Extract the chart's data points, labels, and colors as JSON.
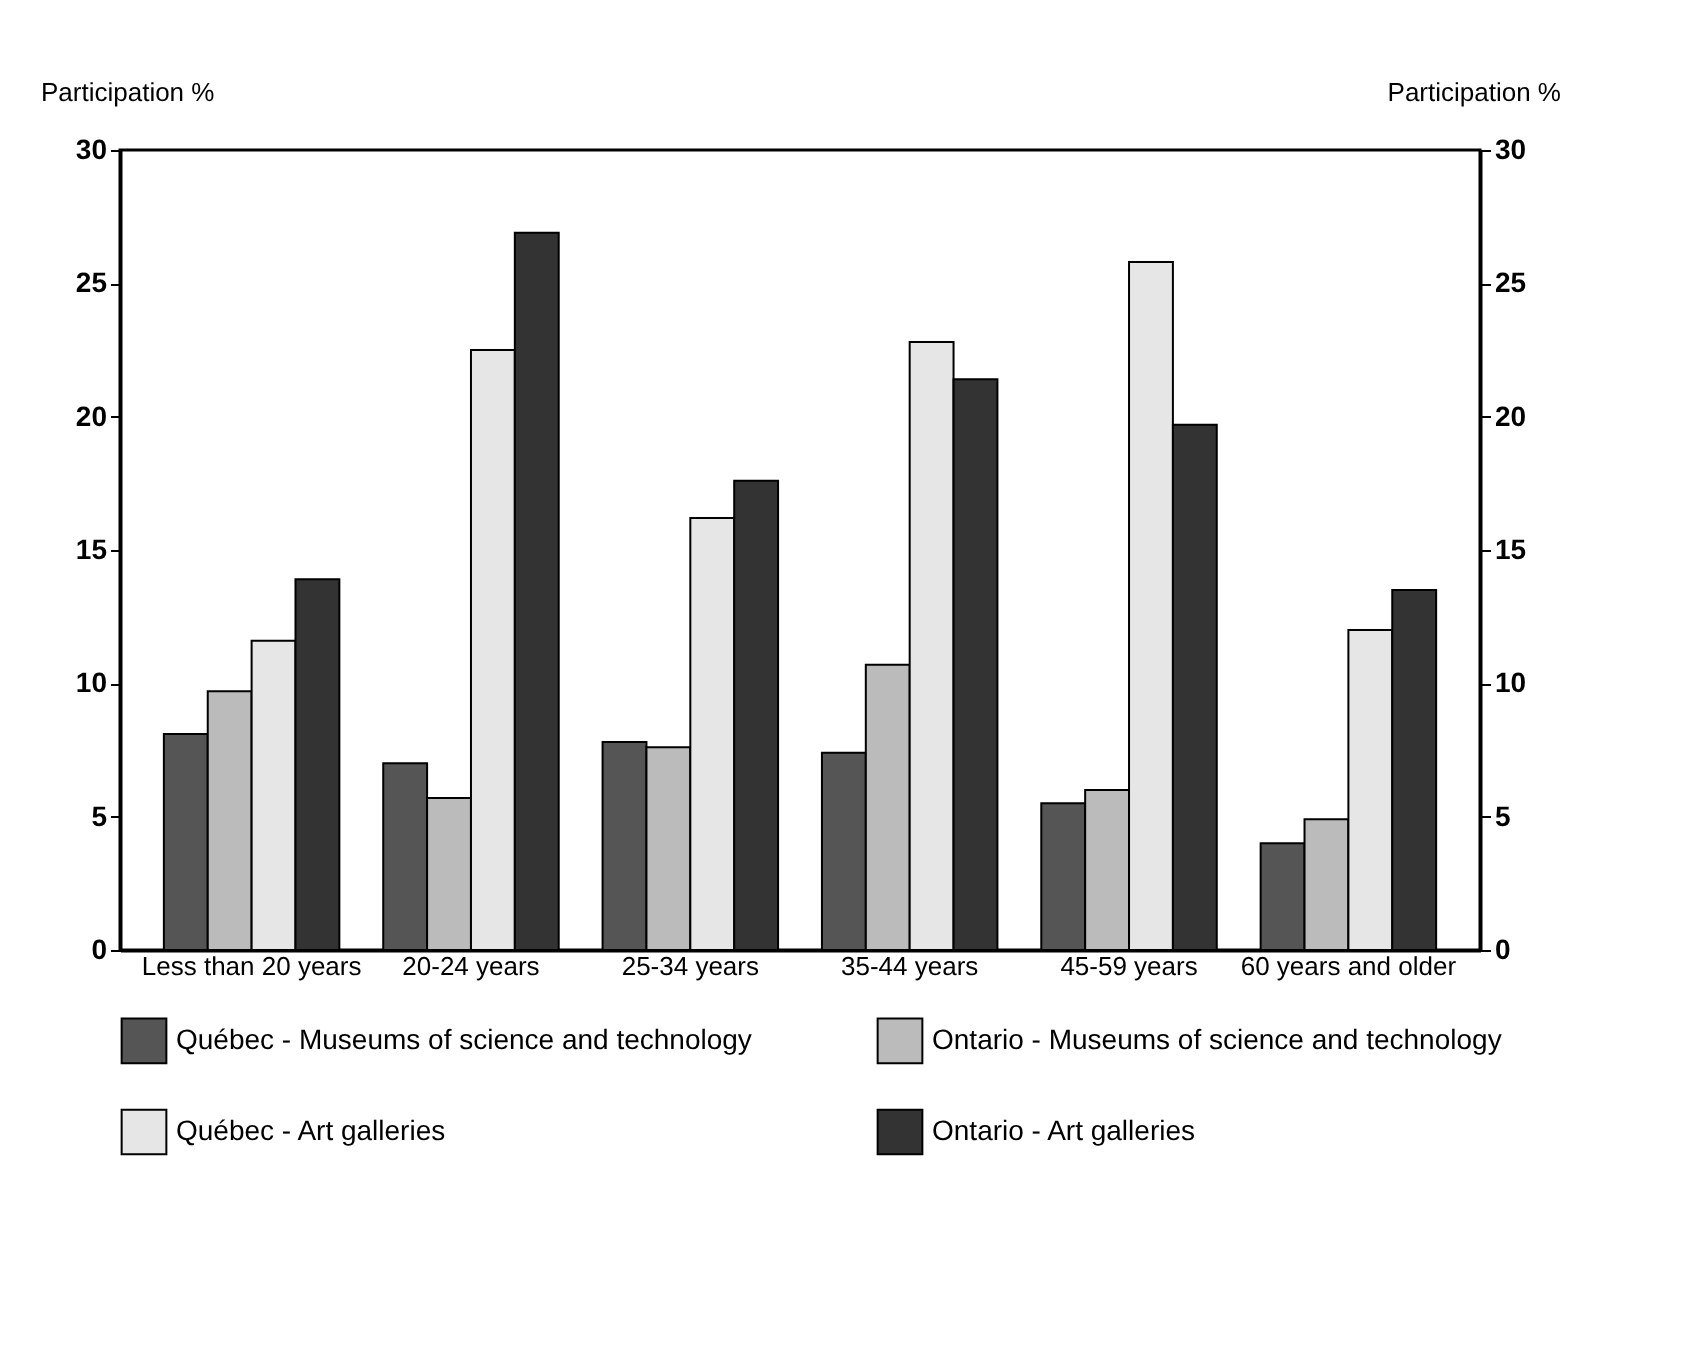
{
  "chart_data": {
    "type": "bar",
    "ylabel": "Participation %",
    "y2label": "Participation %",
    "categories": [
      "Less than 20 years",
      "20-24 years",
      "25-34 years",
      "35-44 years",
      "45-59 years",
      "60 years and older"
    ],
    "series": [
      {
        "name": "Québec - Museums of science and technology",
        "color": "#555555",
        "values": [
          8.1,
          7.0,
          7.8,
          7.4,
          5.5,
          4.0
        ]
      },
      {
        "name": "Ontario - Museums of science and technology",
        "color": "#bbbbbb",
        "values": [
          9.7,
          5.7,
          7.6,
          10.7,
          6.0,
          4.9
        ]
      },
      {
        "name": "Québec - Art galleries",
        "color": "#e6e6e6",
        "values": [
          11.6,
          22.5,
          16.2,
          22.8,
          25.8,
          12.0
        ]
      },
      {
        "name": "Ontario - Art galleries",
        "color": "#333333",
        "values": [
          13.9,
          26.9,
          17.6,
          21.4,
          19.7,
          13.5
        ]
      }
    ],
    "ylim": [
      0,
      30
    ],
    "yticks": [
      0,
      5,
      10,
      15,
      20,
      25,
      30
    ],
    "y2lim": [
      0,
      30
    ],
    "y2ticks": [
      0,
      5,
      10,
      15,
      20,
      25,
      30
    ],
    "grid": false,
    "legend": "bottom"
  }
}
